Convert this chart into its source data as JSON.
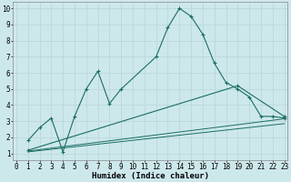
{
  "background_color": "#cde8eb",
  "grid_color": "#b8d5d8",
  "line_color": "#1a6e64",
  "series": [
    {
      "x": [
        1,
        2,
        3,
        4,
        5,
        6,
        7,
        8,
        9,
        12,
        13,
        14,
        15,
        16,
        17,
        18,
        19,
        20,
        21,
        22,
        23
      ],
      "y": [
        1.8,
        2.6,
        3.2,
        1.1,
        3.3,
        5.0,
        6.1,
        4.1,
        5.0,
        7.0,
        8.8,
        10.0,
        9.5,
        8.4,
        6.6,
        5.4,
        5.0,
        4.5,
        3.3,
        3.3,
        3.2
      ],
      "with_markers": true
    },
    {
      "x": [
        1,
        19,
        23
      ],
      "y": [
        1.2,
        5.2,
        3.3
      ],
      "with_markers": true
    },
    {
      "x": [
        1,
        23
      ],
      "y": [
        1.15,
        3.15
      ],
      "with_markers": false
    },
    {
      "x": [
        1,
        23
      ],
      "y": [
        1.1,
        2.85
      ],
      "with_markers": false
    }
  ],
  "xlabel": "Humidex (Indice chaleur)",
  "xlim": [
    -0.3,
    23.3
  ],
  "ylim": [
    0.6,
    10.4
  ],
  "xticks": [
    0,
    1,
    2,
    3,
    4,
    5,
    6,
    7,
    8,
    9,
    10,
    11,
    12,
    13,
    14,
    15,
    16,
    17,
    18,
    19,
    20,
    21,
    22,
    23
  ],
  "yticks": [
    1,
    2,
    3,
    4,
    5,
    6,
    7,
    8,
    9,
    10
  ],
  "xlabel_fontsize": 6.5,
  "tick_fontsize": 5.5,
  "figsize": [
    3.2,
    2.0
  ],
  "dpi": 100
}
